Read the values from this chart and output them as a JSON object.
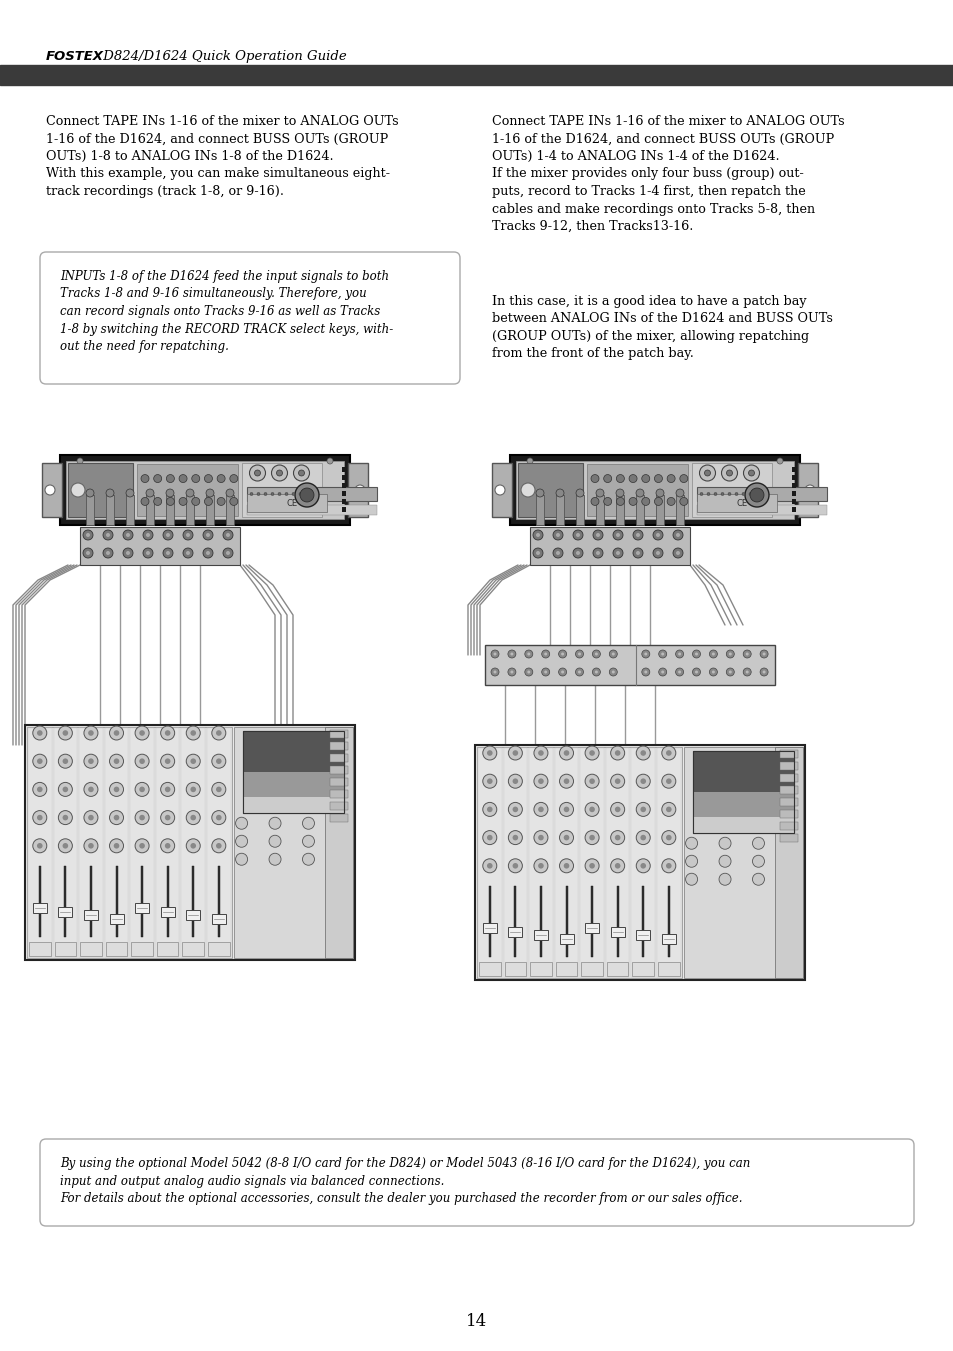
{
  "page_background": "#ffffff",
  "header_text_bold": "FOSTEX",
  "header_text_normal": " D824/D1624 Quick Operation Guide",
  "header_bar_color": "#3a3a3a",
  "left_col_text": "Connect TAPE INs 1-16 of the mixer to ANALOG OUTs\n1-16 of the D1624, and connect BUSS OUTs (GROUP\nOUTs) 1-8 to ANALOG INs 1-8 of the D1624.\nWith this example, you can make simultaneous eight-\ntrack recordings (track 1-8, or 9-16).",
  "right_col_text": "Connect TAPE INs 1-16 of the mixer to ANALOG OUTs\n1-16 of the D1624, and connect BUSS OUTs (GROUP\nOUTs) 1-4 to ANALOG INs 1-4 of the D1624.\nIf the mixer provides only four buss (group) out-\nputs, record to Tracks 1-4 first, then repatch the\ncables and make recordings onto Tracks 5-8, then\nTracks 9-12, then Tracks13-16.",
  "right_col_text2": "In this case, it is a good idea to have a patch bay\nbetween ANALOG INs of the D1624 and BUSS OUTs\n(GROUP OUTs) of the mixer, allowing repatching\nfrom the front of the patch bay.",
  "note_box_text": "INPUTs 1-8 of the D1624 feed the input signals to both\nTracks 1-8 and 9-16 simultaneously. Therefore, you\ncan record signals onto Tracks 9-16 as well as Tracks\n1-8 by switching the RECORD TRACK select keys, with-\nout the need for repatching.",
  "footer_note_text": "By using the optional Model 5042 (8-8 I/O card for the D824) or Model 5043 (8-16 I/O card for the D1624), you can\ninput and output analog audio signals via balanced connections.\nFor details about the optional accessories, consult the dealer you purchased the recorder from or our sales office.",
  "page_number": "14",
  "text_color": "#000000",
  "note_box_border_color": "#aaaaaa",
  "note_box_bg": "#ffffff",
  "font_size_body": 9.2,
  "font_size_header": 9.5,
  "font_size_note": 8.5,
  "font_size_footer": 8.5
}
